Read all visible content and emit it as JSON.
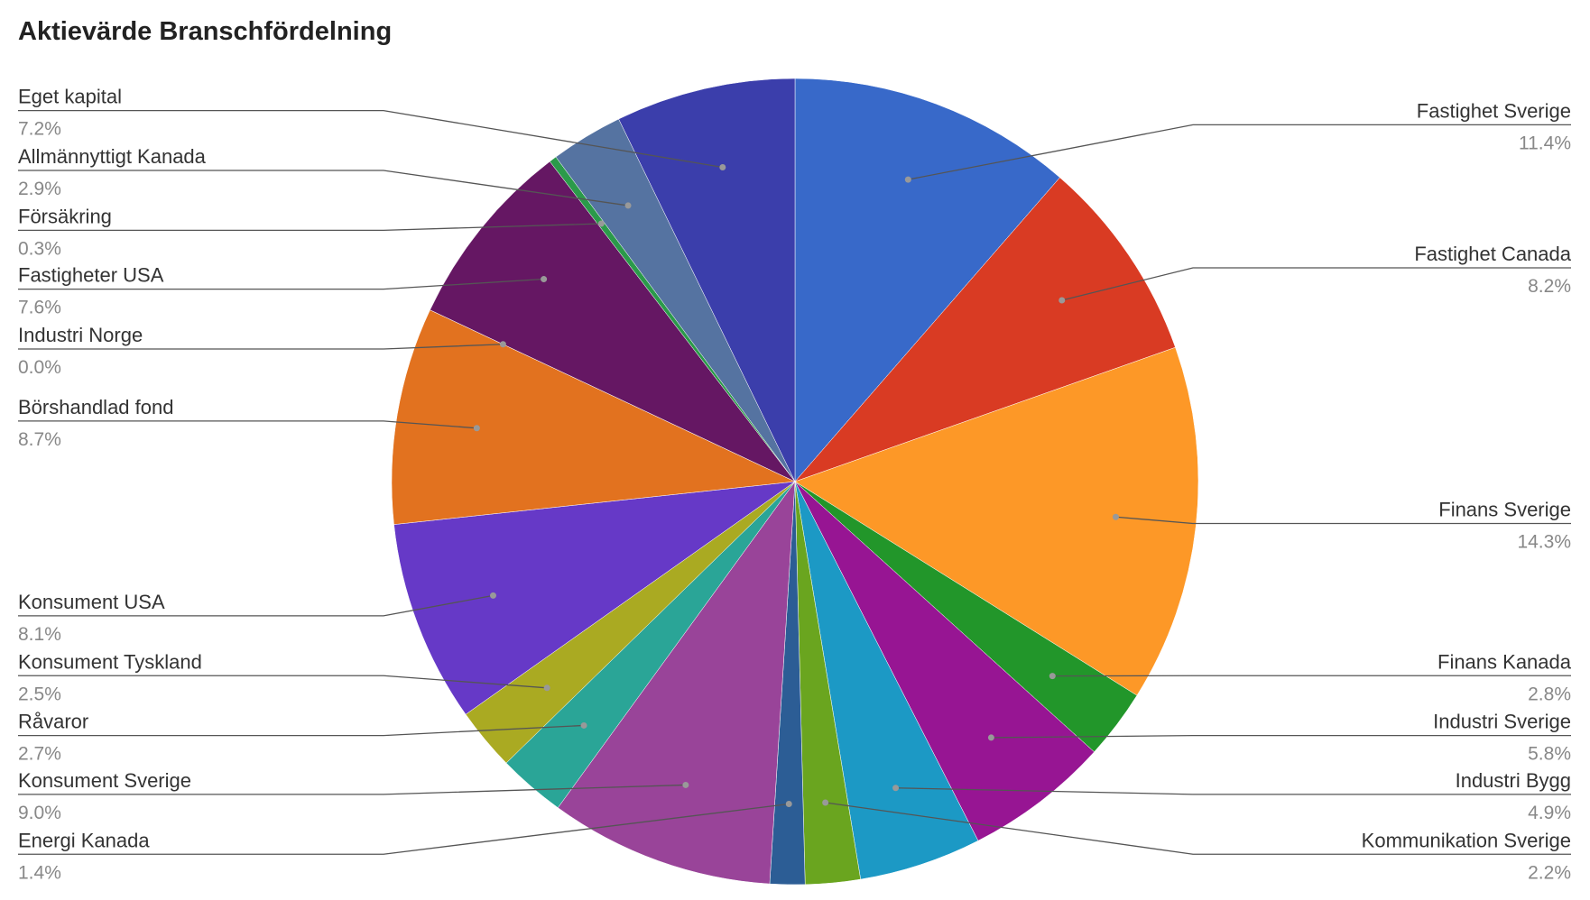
{
  "chart_data": {
    "type": "pie",
    "title": "Aktievärde Branschfördelning",
    "categories": [
      "Fastighet Sverige",
      "Fastighet Canada",
      "Finans Sverige",
      "Finans Kanada",
      "Industri Sverige",
      "Industri Bygg",
      "Kommunikation Sverige",
      "Energi Kanada",
      "Konsument Sverige",
      "Råvaror",
      "Konsument Tyskland",
      "Konsument USA",
      "Börshandlad fond",
      "Industri Norge",
      "Fastigheter USA",
      "Försäkring",
      "Allmännyttigt Kanada",
      "Eget kapital"
    ],
    "values": [
      11.4,
      8.2,
      14.3,
      2.8,
      5.8,
      4.9,
      2.2,
      1.4,
      9.0,
      2.7,
      2.5,
      8.1,
      8.7,
      0.0,
      7.6,
      0.3,
      2.9,
      7.2
    ],
    "value_labels": [
      "11.4%",
      "8.2%",
      "14.3%",
      "2.8%",
      "5.8%",
      "4.9%",
      "2.2%",
      "1.4%",
      "9.0%",
      "2.7%",
      "2.5%",
      "8.1%",
      "8.7%",
      "0.0%",
      "7.6%",
      "0.3%",
      "2.9%",
      "7.2%"
    ],
    "colors": [
      "#3869c9",
      "#d93b23",
      "#fd9827",
      "#22962a",
      "#971593",
      "#1c99c5",
      "#6aa51f",
      "#2c5d95",
      "#994499",
      "#2aa597",
      "#aaaa22",
      "#6639c7",
      "#e2721f",
      "#b8b83a",
      "#651763",
      "#2b9a4a",
      "#5573a1",
      "#3b3eab"
    ]
  }
}
